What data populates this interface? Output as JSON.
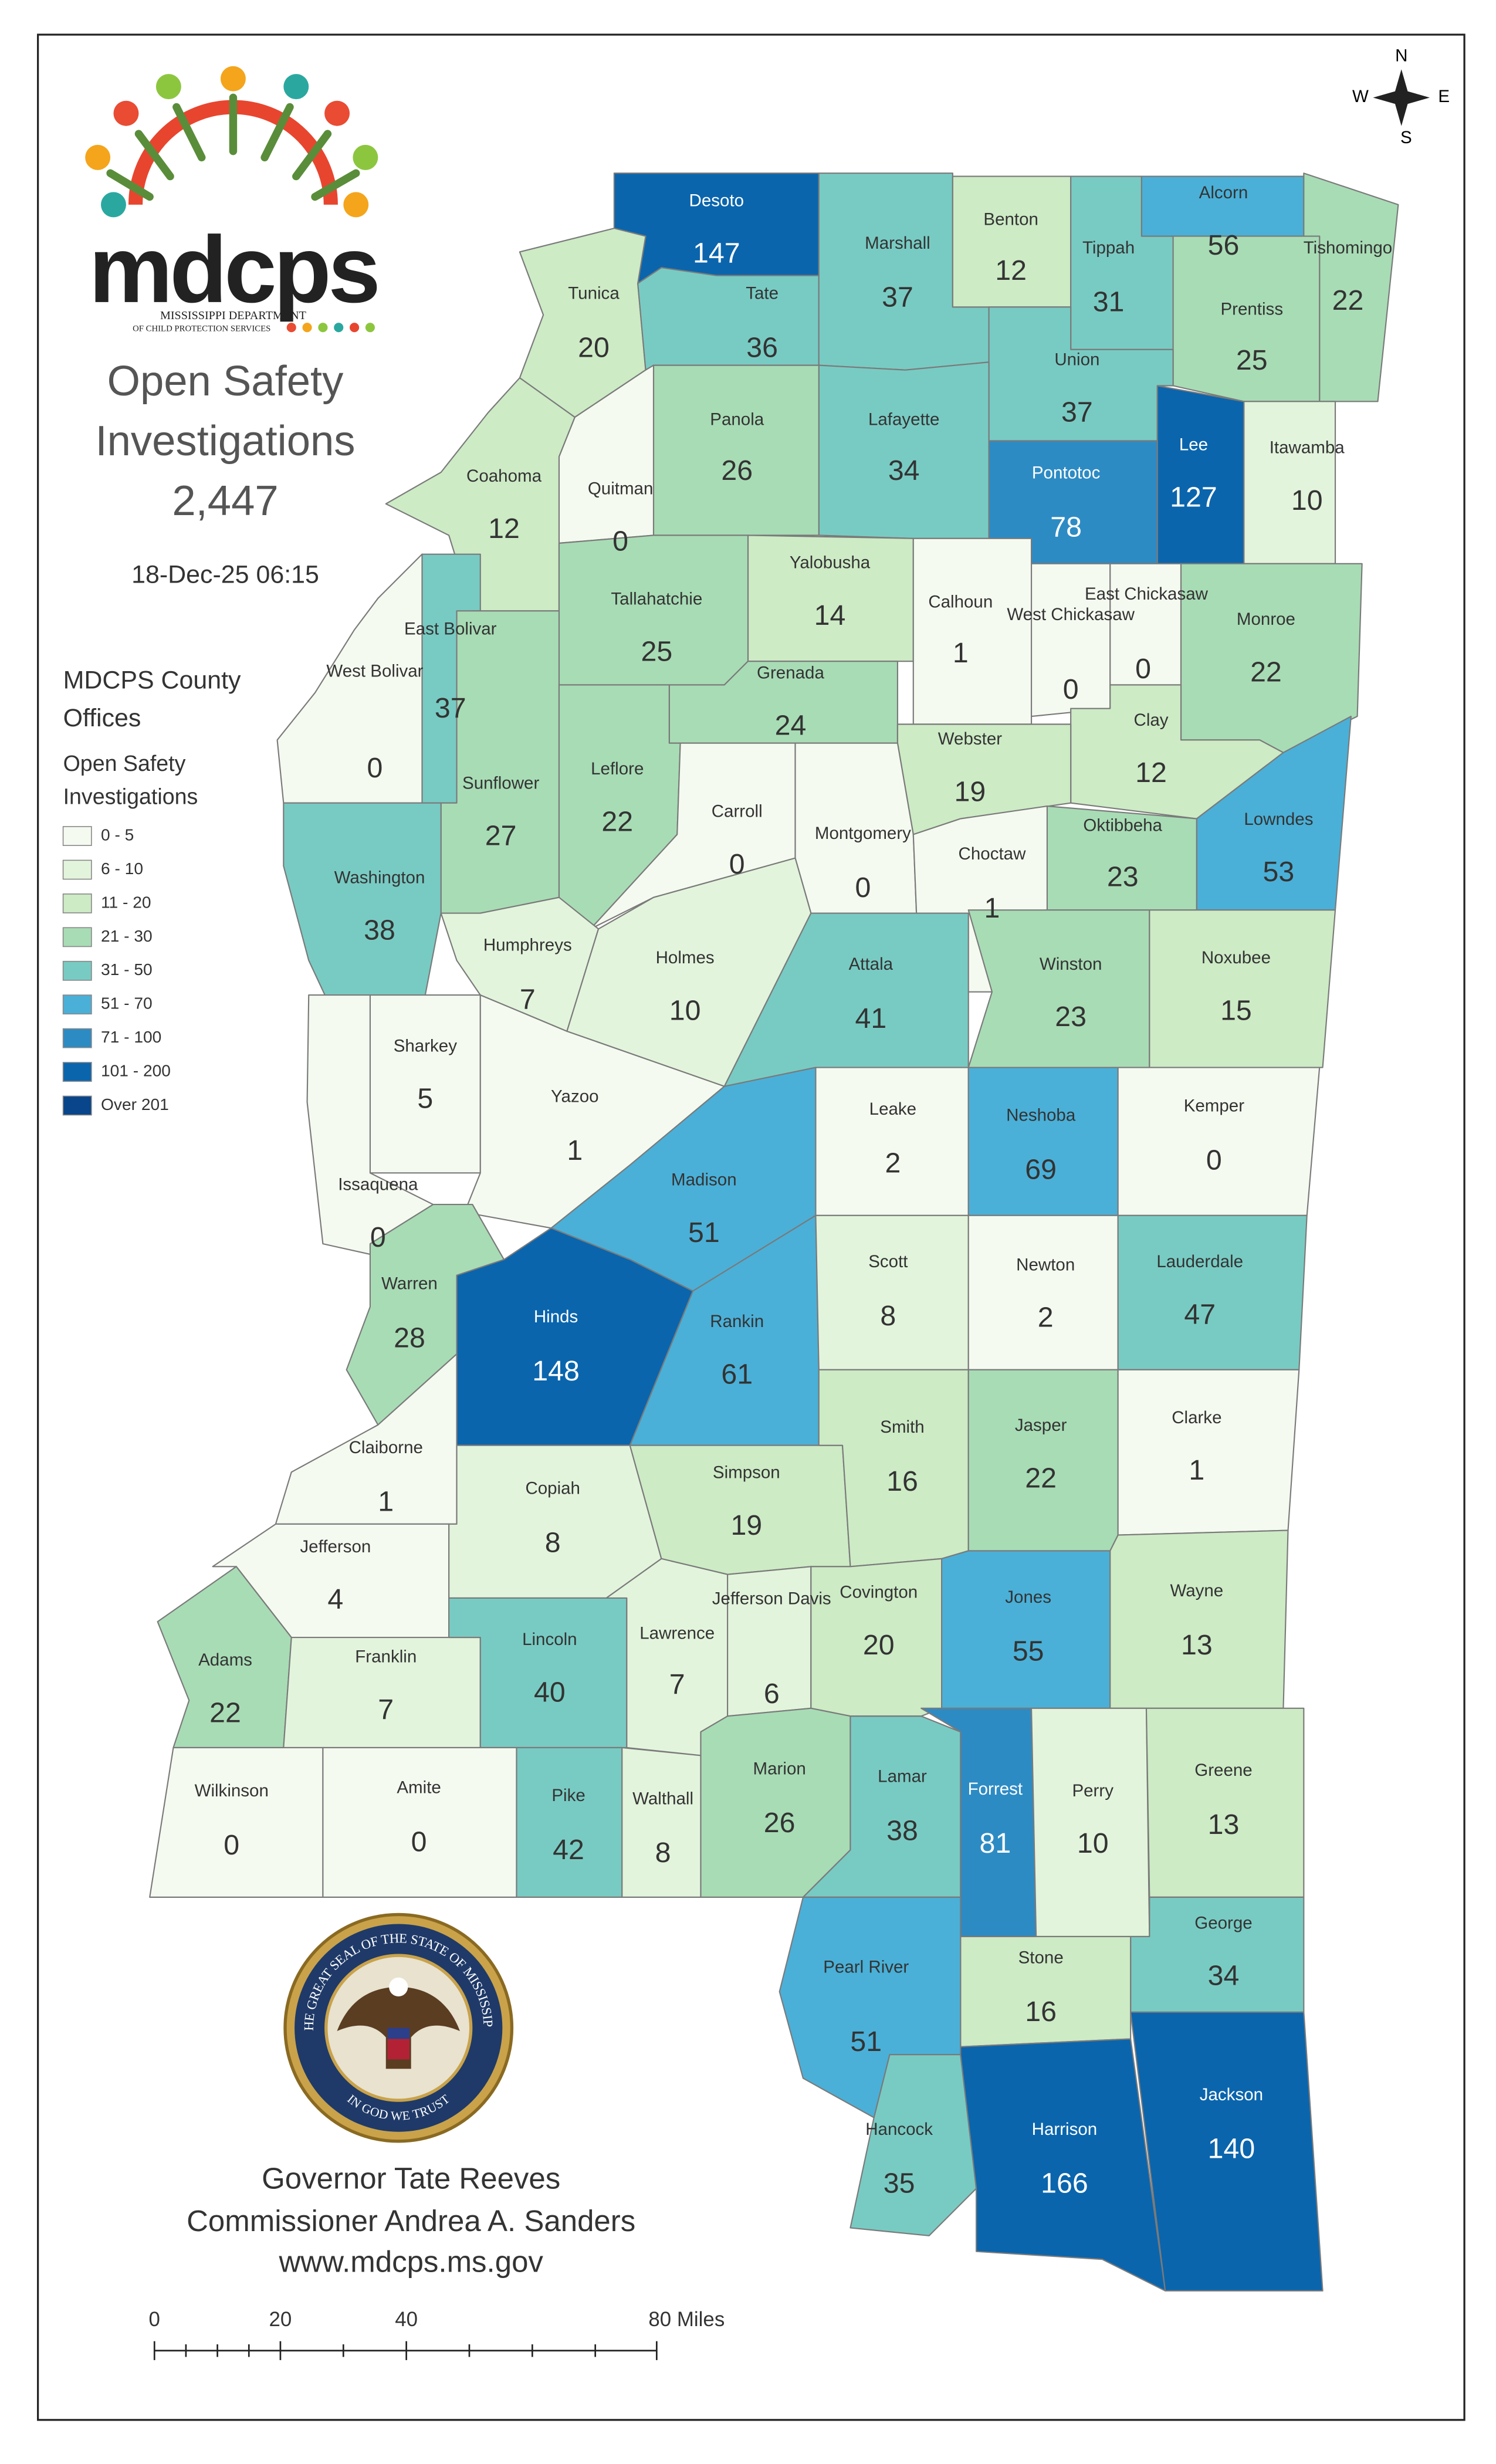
{
  "logo": {
    "wordmark": "mdcps",
    "line1": "MISSISSIPPI DEPARTMENT",
    "line2": "OF CHILD PROTECTION SERVICES"
  },
  "title_lines": [
    "Open Safety",
    "Investigations"
  ],
  "total": "2,447",
  "timestamp": "18-Dec-25 06:15",
  "legend": {
    "heading_lines": [
      "MDCPS County",
      "Offices"
    ],
    "subheading_lines": [
      "Open Safety",
      "Investigations"
    ],
    "classes": [
      {
        "label": "0 - 5",
        "color": "#f5faf0"
      },
      {
        "label": "6 - 10",
        "color": "#e3f4dc"
      },
      {
        "label": "11 - 20",
        "color": "#cdebc5"
      },
      {
        "label": "21 - 30",
        "color": "#a8dcb5"
      },
      {
        "label": "31 - 50",
        "color": "#78cbc3"
      },
      {
        "label": "51 - 70",
        "color": "#4ab0d8"
      },
      {
        "label": "71 - 100",
        "color": "#2d8bc4"
      },
      {
        "label": "101 - 200",
        "color": "#0a65ad"
      },
      {
        "label": "Over 201",
        "color": "#08458a"
      }
    ]
  },
  "counties": [
    {
      "name": "Desoto",
      "value": 147,
      "color": "#0a65ad"
    },
    {
      "name": "Tunica",
      "value": 20,
      "color": "#cdebc5"
    },
    {
      "name": "Tate",
      "value": 36,
      "color": "#78cbc3"
    },
    {
      "name": "Marshall",
      "value": 37,
      "color": "#78cbc3"
    },
    {
      "name": "Benton",
      "value": 12,
      "color": "#cdebc5"
    },
    {
      "name": "Tippah",
      "value": 31,
      "color": "#78cbc3"
    },
    {
      "name": "Alcorn",
      "value": 56,
      "color": "#4ab0d8"
    },
    {
      "name": "Tishomingo",
      "value": 22,
      "color": "#a8dcb5"
    },
    {
      "name": "Prentiss",
      "value": 25,
      "color": "#a8dcb5"
    },
    {
      "name": "Union",
      "value": 37,
      "color": "#78cbc3"
    },
    {
      "name": "Lee",
      "value": 127,
      "color": "#0a65ad"
    },
    {
      "name": "Itawamba",
      "value": 10,
      "color": "#e3f4dc"
    },
    {
      "name": "Lafayette",
      "value": 34,
      "color": "#78cbc3"
    },
    {
      "name": "Panola",
      "value": 26,
      "color": "#a8dcb5"
    },
    {
      "name": "Quitman",
      "value": 0,
      "color": "#f5faf0"
    },
    {
      "name": "Coahoma",
      "value": 12,
      "color": "#cdebc5"
    },
    {
      "name": "Pontotoc",
      "value": 78,
      "color": "#2d8bc4"
    },
    {
      "name": "Yalobusha",
      "value": 14,
      "color": "#cdebc5"
    },
    {
      "name": "Tallahatchie",
      "value": 25,
      "color": "#a8dcb5"
    },
    {
      "name": "Calhoun",
      "value": 1,
      "color": "#f5faf0"
    },
    {
      "name": "West Chickasaw",
      "value": 0,
      "color": "#f5faf0"
    },
    {
      "name": "East Chickasaw",
      "value": 0,
      "color": "#f5faf0"
    },
    {
      "name": "Monroe",
      "value": 22,
      "color": "#a8dcb5"
    },
    {
      "name": "Clay",
      "value": 12,
      "color": "#cdebc5"
    },
    {
      "name": "Grenada",
      "value": 24,
      "color": "#a8dcb5"
    },
    {
      "name": "Webster",
      "value": 19,
      "color": "#cdebc5"
    },
    {
      "name": "Oktibbeha",
      "value": 23,
      "color": "#a8dcb5"
    },
    {
      "name": "Lowndes",
      "value": 53,
      "color": "#4ab0d8"
    },
    {
      "name": "East Bolivar",
      "value": 37,
      "color": "#78cbc3"
    },
    {
      "name": "West Bolivar",
      "value": 0,
      "color": "#f5faf0"
    },
    {
      "name": "Sunflower",
      "value": 27,
      "color": "#a8dcb5"
    },
    {
      "name": "Leflore",
      "value": 22,
      "color": "#a8dcb5"
    },
    {
      "name": "Carroll",
      "value": 0,
      "color": "#f5faf0"
    },
    {
      "name": "Montgomery",
      "value": 0,
      "color": "#f5faf0"
    },
    {
      "name": "Choctaw",
      "value": 1,
      "color": "#f5faf0"
    },
    {
      "name": "Washington",
      "value": 38,
      "color": "#78cbc3"
    },
    {
      "name": "Humphreys",
      "value": 7,
      "color": "#e3f4dc"
    },
    {
      "name": "Holmes",
      "value": 10,
      "color": "#e3f4dc"
    },
    {
      "name": "Attala",
      "value": 41,
      "color": "#78cbc3"
    },
    {
      "name": "Winston",
      "value": 23,
      "color": "#a8dcb5"
    },
    {
      "name": "Noxubee",
      "value": 15,
      "color": "#cdebc5"
    },
    {
      "name": "Sharkey",
      "value": 5,
      "color": "#f5faf0"
    },
    {
      "name": "Yazoo",
      "value": 1,
      "color": "#f5faf0"
    },
    {
      "name": "Issaquena",
      "value": 0,
      "color": "#f5faf0"
    },
    {
      "name": "Leake",
      "value": 2,
      "color": "#f5faf0"
    },
    {
      "name": "Neshoba",
      "value": 69,
      "color": "#4ab0d8"
    },
    {
      "name": "Kemper",
      "value": 0,
      "color": "#f5faf0"
    },
    {
      "name": "Madison",
      "value": 51,
      "color": "#4ab0d8"
    },
    {
      "name": "Warren",
      "value": 28,
      "color": "#a8dcb5"
    },
    {
      "name": "Hinds",
      "value": 148,
      "color": "#0a65ad"
    },
    {
      "name": "Rankin",
      "value": 61,
      "color": "#4ab0d8"
    },
    {
      "name": "Scott",
      "value": 8,
      "color": "#e3f4dc"
    },
    {
      "name": "Newton",
      "value": 2,
      "color": "#f5faf0"
    },
    {
      "name": "Lauderdale",
      "value": 47,
      "color": "#78cbc3"
    },
    {
      "name": "Claiborne",
      "value": 1,
      "color": "#f5faf0"
    },
    {
      "name": "Copiah",
      "value": 8,
      "color": "#e3f4dc"
    },
    {
      "name": "Simpson",
      "value": 19,
      "color": "#cdebc5"
    },
    {
      "name": "Smith",
      "value": 16,
      "color": "#cdebc5"
    },
    {
      "name": "Jasper",
      "value": 22,
      "color": "#a8dcb5"
    },
    {
      "name": "Clarke",
      "value": 1,
      "color": "#f5faf0"
    },
    {
      "name": "Jefferson",
      "value": 4,
      "color": "#f5faf0"
    },
    {
      "name": "Adams",
      "value": 22,
      "color": "#a8dcb5"
    },
    {
      "name": "Franklin",
      "value": 7,
      "color": "#e3f4dc"
    },
    {
      "name": "Lincoln",
      "value": 40,
      "color": "#78cbc3"
    },
    {
      "name": "Lawrence",
      "value": 7,
      "color": "#e3f4dc"
    },
    {
      "name": "Jefferson Davis",
      "value": 6,
      "color": "#e3f4dc"
    },
    {
      "name": "Covington",
      "value": 20,
      "color": "#cdebc5"
    },
    {
      "name": "Jones",
      "value": 55,
      "color": "#4ab0d8"
    },
    {
      "name": "Wayne",
      "value": 13,
      "color": "#cdebc5"
    },
    {
      "name": "Wilkinson",
      "value": 0,
      "color": "#f5faf0"
    },
    {
      "name": "Amite",
      "value": 0,
      "color": "#f5faf0"
    },
    {
      "name": "Pike",
      "value": 42,
      "color": "#78cbc3"
    },
    {
      "name": "Walthall",
      "value": 8,
      "color": "#e3f4dc"
    },
    {
      "name": "Marion",
      "value": 26,
      "color": "#a8dcb5"
    },
    {
      "name": "Lamar",
      "value": 38,
      "color": "#78cbc3"
    },
    {
      "name": "Forrest",
      "value": 81,
      "color": "#2d8bc4"
    },
    {
      "name": "Perry",
      "value": 10,
      "color": "#e3f4dc"
    },
    {
      "name": "Greene",
      "value": 13,
      "color": "#cdebc5"
    },
    {
      "name": "George",
      "value": 34,
      "color": "#78cbc3"
    },
    {
      "name": "Stone",
      "value": 16,
      "color": "#cdebc5"
    },
    {
      "name": "Pearl River",
      "value": 51,
      "color": "#4ab0d8"
    },
    {
      "name": "Hancock",
      "value": 35,
      "color": "#78cbc3"
    },
    {
      "name": "Harrison",
      "value": 166,
      "color": "#0a65ad"
    },
    {
      "name": "Jackson",
      "value": 140,
      "color": "#0a65ad"
    }
  ],
  "seal": {
    "ring_text": "THE GREAT SEAL OF THE STATE OF MISSISSIPPI",
    "motto": "IN GOD WE TRUST"
  },
  "footer": [
    "Governor Tate Reeves",
    "Commissioner Andrea A. Sanders",
    "www.mdcps.ms.gov"
  ],
  "scale_bar": [
    "0",
    "20",
    "40",
    "80 Miles"
  ],
  "compass": {
    "n": "N",
    "s": "S",
    "e": "E",
    "w": "W"
  }
}
